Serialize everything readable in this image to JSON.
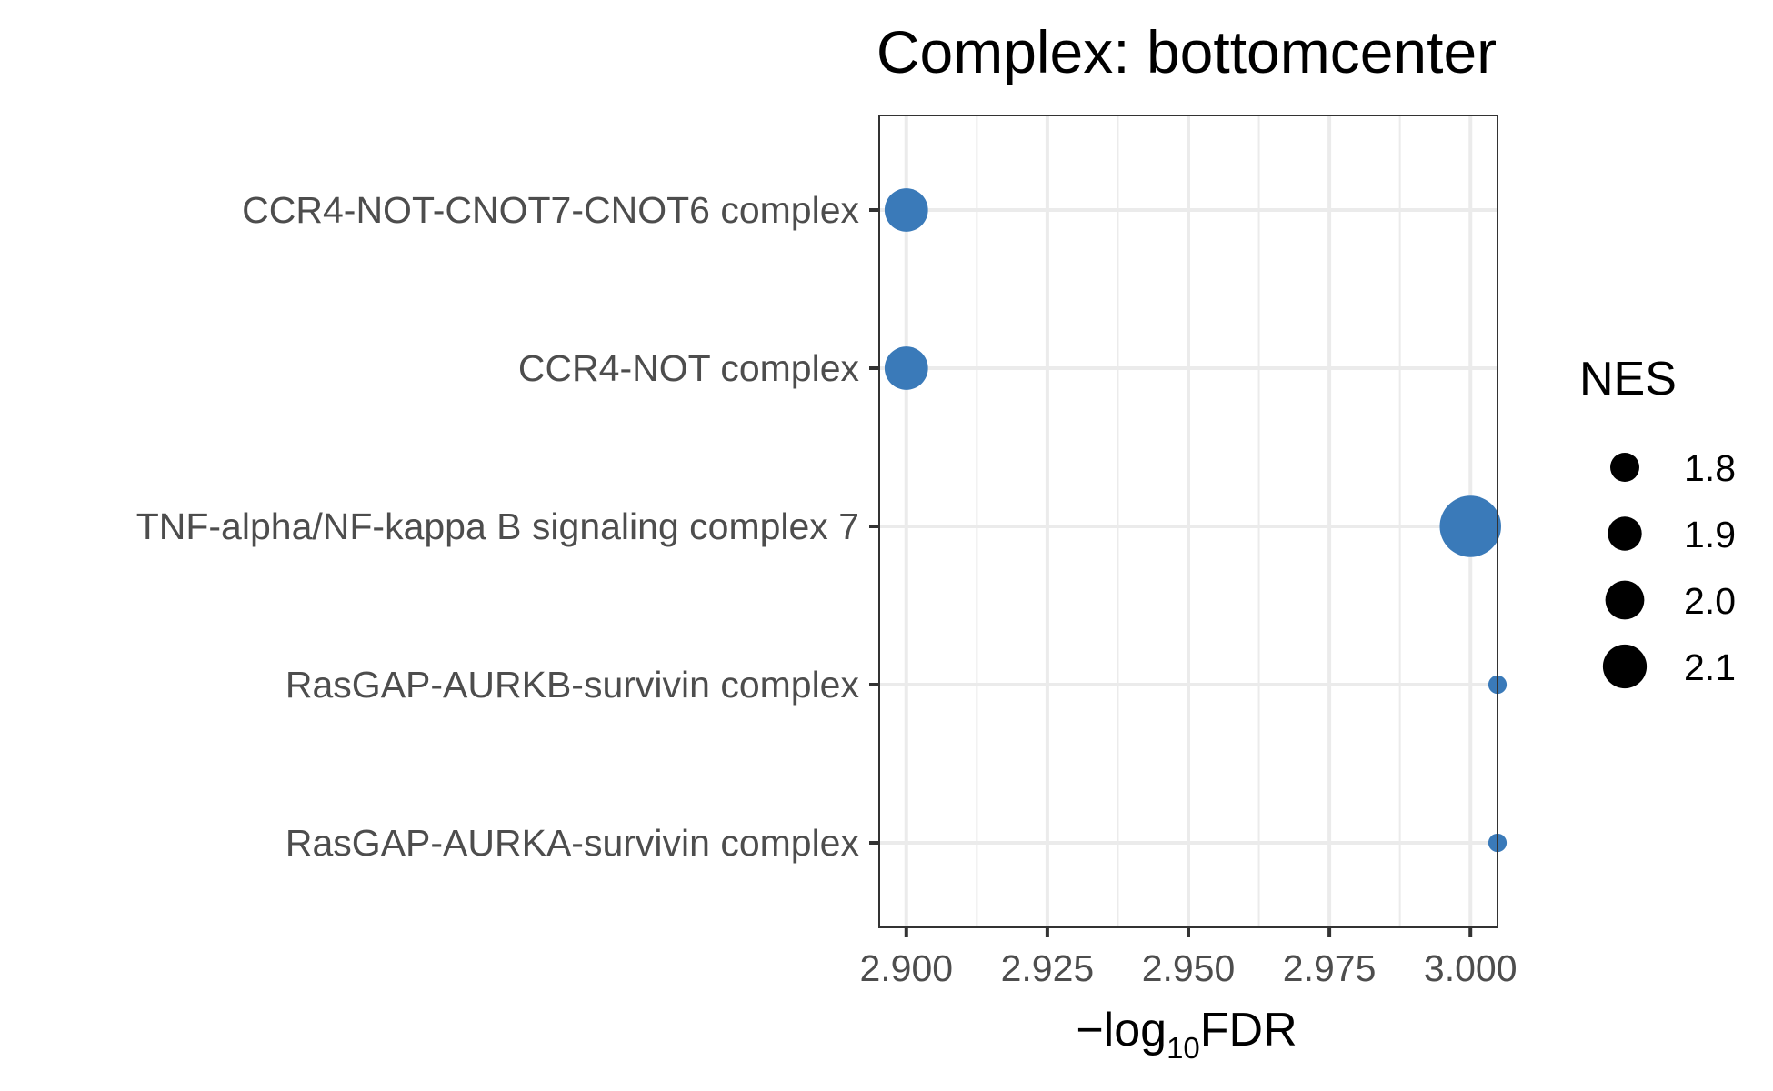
{
  "chart_data": {
    "type": "scatter",
    "title": "Complex: bottomcenter",
    "xlabel": {
      "prefix": "−log",
      "subscript": "10",
      "suffix": "FDR"
    },
    "ylabel": "",
    "xlim": [
      2.8952,
      3.0048
    ],
    "xticks": [
      2.9,
      2.925,
      2.95,
      2.975,
      3.0
    ],
    "xtick_labels": [
      "2.900",
      "2.925",
      "2.950",
      "2.975",
      "3.000"
    ],
    "categories": [
      "CCR4-NOT-CNOT7-CNOT6 complex",
      "CCR4-NOT complex",
      "TNF-alpha/NF-kappa B signaling complex 7",
      "RasGAP-AURKB-survivin complex",
      "RasGAP-AURKA-survivin complex"
    ],
    "points": [
      {
        "category": "CCR4-NOT-CNOT7-CNOT6 complex",
        "x": 2.9,
        "nes": 1.97
      },
      {
        "category": "CCR4-NOT complex",
        "x": 2.9,
        "nes": 1.97
      },
      {
        "category": "TNF-alpha/NF-kappa B signaling complex 7",
        "x": 3.0,
        "nes": 2.15
      },
      {
        "category": "RasGAP-AURKB-survivin complex",
        "x": 3.0048,
        "nes": 1.72
      },
      {
        "category": "RasGAP-AURKA-survivin complex",
        "x": 3.0048,
        "nes": 1.72
      }
    ],
    "point_color": "#3a7ab9",
    "grid": true,
    "legend": {
      "title": "NES",
      "position": "right",
      "entries": [
        {
          "label": "1.8",
          "value": 1.8
        },
        {
          "label": "1.9",
          "value": 1.9
        },
        {
          "label": "2.0",
          "value": 2.0
        },
        {
          "label": "2.1",
          "value": 2.1
        }
      ],
      "color": "#000000"
    }
  }
}
